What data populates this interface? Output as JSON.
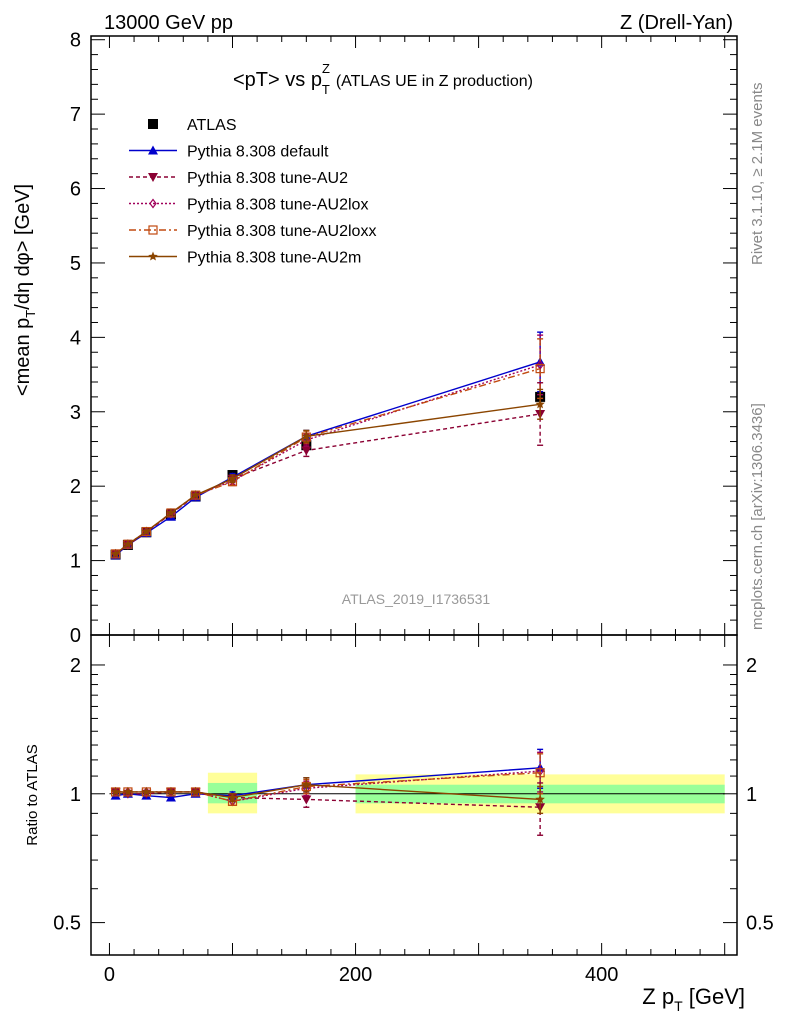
{
  "header": {
    "energy": "13000 GeV pp",
    "process": "Z (Drell-Yan)"
  },
  "side_labels": {
    "rivet": "Rivet 3.1.10, ≥ 2.1M events",
    "mcplots": "mcplots.cern.ch [arXiv:1306.3436]"
  },
  "colors": {
    "atlas": "#000000",
    "default": "#0000cc",
    "au2": "#8b0033",
    "au2lox": "#a0005a",
    "au2loxx": "#c24a10",
    "au2m": "#8b4500",
    "band_inner": "#99ff99",
    "band_outer": "#ffff99",
    "watermark": "#999999"
  },
  "chart_data": [
    {
      "type": "line",
      "title": "<pT> vs pTZ (ATLAS UE in Z production)",
      "title_main": "<pT> vs p",
      "title_sup": "Z",
      "title_sub": "T",
      "title_rest": "(ATLAS UE in Z production)",
      "ylabel": "<mean pT/dη dφ> [GeV]",
      "ylabel_parts": [
        "<mean p",
        "T",
        "/dη dφ> [GeV]"
      ],
      "watermark": "ATLAS_2019_I1736531",
      "xlim": [
        -15,
        510
      ],
      "ylim": [
        0,
        8.05
      ],
      "yticks": [
        0,
        1,
        2,
        3,
        4,
        5,
        6,
        7,
        8
      ],
      "ytick_labels": [
        "0",
        "1",
        "2",
        "3",
        "4",
        "5",
        "6",
        "7",
        "8"
      ],
      "legend_position": "top-left",
      "x": [
        5,
        15,
        30,
        50,
        70,
        100,
        160,
        350
      ],
      "series": [
        {
          "name": "ATLAS",
          "style": "atlas",
          "values": [
            1.08,
            1.21,
            1.38,
            1.62,
            1.86,
            2.15,
            2.55,
            3.2
          ]
        },
        {
          "name": "Pythia 8.308 default",
          "style": "default",
          "values": [
            1.07,
            1.21,
            1.37,
            1.59,
            1.85,
            2.12,
            2.67,
            3.67
          ],
          "errors": [
            0,
            0,
            0,
            0,
            0,
            0.05,
            0.08,
            0.4
          ]
        },
        {
          "name": "Pythia 8.308 tune-AU2",
          "style": "au2",
          "values": [
            1.09,
            1.21,
            1.38,
            1.63,
            1.87,
            2.1,
            2.48,
            2.97
          ],
          "errors": [
            0,
            0,
            0,
            0,
            0,
            0.05,
            0.08,
            0.42
          ]
        },
        {
          "name": "Pythia 8.308 tune-AU2lox",
          "style": "au2lox",
          "values": [
            1.09,
            1.22,
            1.39,
            1.63,
            1.88,
            2.07,
            2.62,
            3.63
          ],
          "errors": [
            0,
            0,
            0,
            0,
            0,
            0.05,
            0.08,
            0.4
          ]
        },
        {
          "name": "Pythia 8.308 tune-AU2loxx",
          "style": "au2loxx",
          "values": [
            1.09,
            1.22,
            1.39,
            1.64,
            1.88,
            2.06,
            2.66,
            3.58
          ],
          "errors": [
            0,
            0,
            0,
            0,
            0,
            0.05,
            0.08,
            0.4
          ]
        },
        {
          "name": "Pythia 8.308 tune-AU2m",
          "style": "au2m",
          "values": [
            1.09,
            1.22,
            1.39,
            1.64,
            1.88,
            2.1,
            2.67,
            3.1
          ],
          "errors": [
            0,
            0,
            0,
            0,
            0,
            0.05,
            0.08,
            0.2
          ]
        }
      ]
    },
    {
      "type": "line",
      "ylabel": "Ratio to ATLAS",
      "xlabel": "Z pT [GeV]",
      "xlabel_parts": [
        "Z p",
        "T",
        " [GeV]"
      ],
      "xlim": [
        -15,
        510
      ],
      "ylim": [
        0.42,
        2.35
      ],
      "scale": "log",
      "xticks": [
        0,
        200,
        400
      ],
      "xtick_labels": [
        "0",
        "200",
        "400"
      ],
      "yticks": [
        0.5,
        1,
        2
      ],
      "ytick_labels": [
        "0.5",
        "1",
        "2"
      ],
      "reference": 1,
      "bands": [
        {
          "x": [
            80,
            120
          ],
          "inner": [
            0.95,
            1.06
          ],
          "outer": [
            0.9,
            1.12
          ]
        },
        {
          "x": [
            200,
            500
          ],
          "inner": [
            0.95,
            1.05
          ],
          "outer": [
            0.9,
            1.11
          ]
        }
      ],
      "x": [
        5,
        15,
        30,
        50,
        70,
        100,
        160,
        350
      ],
      "series": [
        {
          "name": "Pythia 8.308 default",
          "style": "default",
          "values": [
            0.99,
            1.0,
            0.99,
            0.98,
            1.0,
            0.99,
            1.05,
            1.15
          ],
          "errors": [
            0,
            0,
            0,
            0,
            0,
            0.02,
            0.04,
            0.12
          ]
        },
        {
          "name": "Pythia 8.308 tune-AU2",
          "style": "au2",
          "values": [
            1.01,
            1.0,
            1.0,
            1.01,
            1.01,
            0.98,
            0.97,
            0.93
          ],
          "errors": [
            0,
            0,
            0,
            0,
            0,
            0.02,
            0.04,
            0.13
          ]
        },
        {
          "name": "Pythia 8.308 tune-AU2lox",
          "style": "au2lox",
          "values": [
            1.01,
            1.01,
            1.01,
            1.01,
            1.01,
            0.96,
            1.03,
            1.13
          ],
          "errors": [
            0,
            0,
            0,
            0,
            0,
            0.02,
            0.04,
            0.12
          ]
        },
        {
          "name": "Pythia 8.308 tune-AU2loxx",
          "style": "au2loxx",
          "values": [
            1.01,
            1.01,
            1.01,
            1.01,
            1.01,
            0.96,
            1.04,
            1.12
          ],
          "errors": [
            0,
            0,
            0,
            0,
            0,
            0.02,
            0.04,
            0.12
          ]
        },
        {
          "name": "Pythia 8.308 tune-AU2m",
          "style": "au2m",
          "values": [
            1.01,
            1.01,
            1.01,
            1.01,
            1.01,
            0.98,
            1.05,
            0.97
          ],
          "errors": [
            0,
            0,
            0,
            0,
            0,
            0.02,
            0.04,
            0.07
          ]
        }
      ]
    }
  ]
}
